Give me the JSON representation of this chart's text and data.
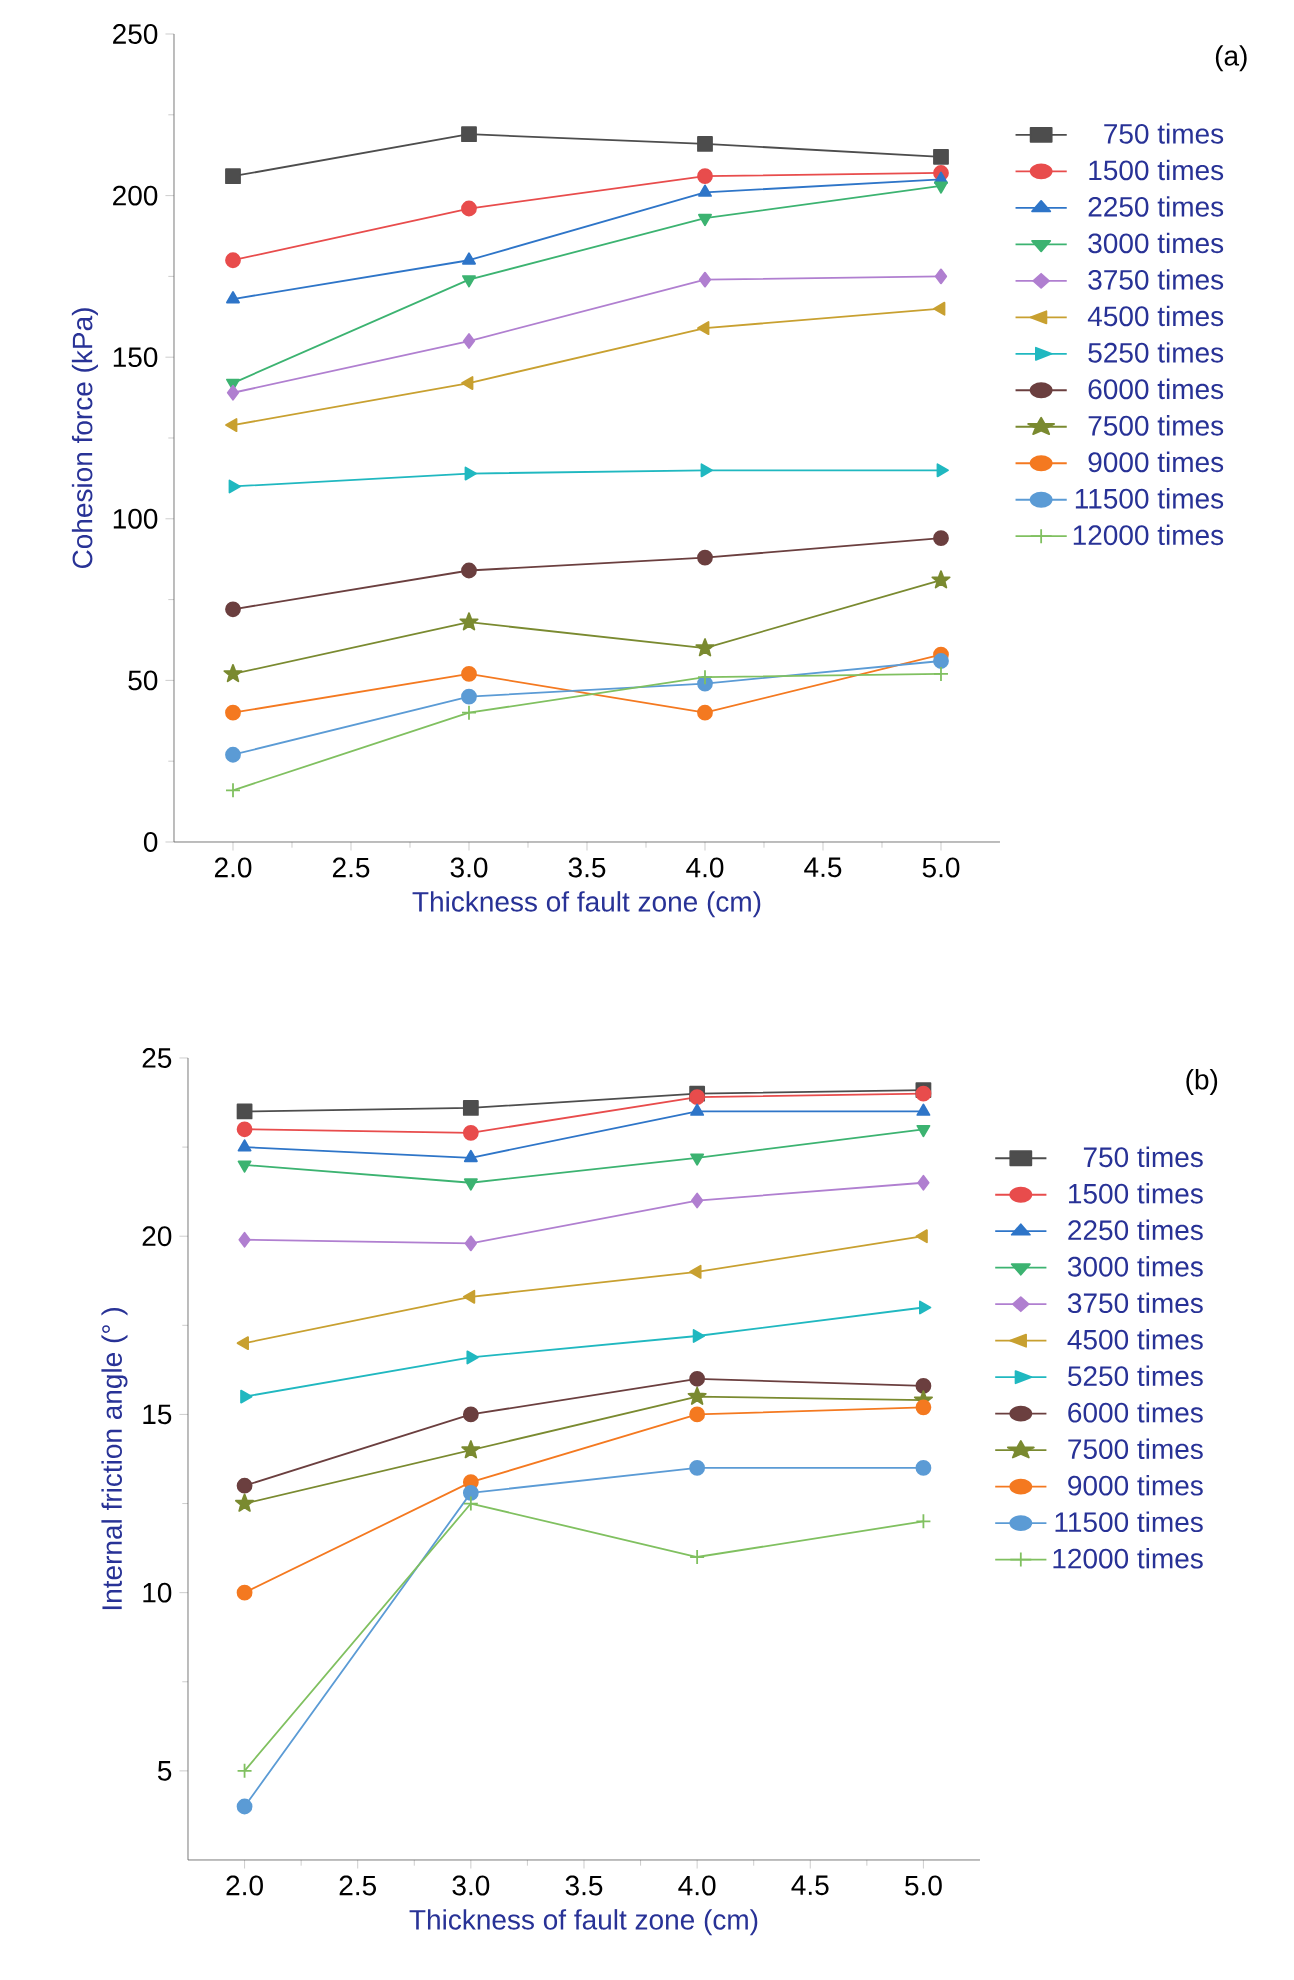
{
  "chart_data": [
    {
      "type": "line",
      "xlabel": "Thickness of fault zone (cm)",
      "ylabel": "Cohesion force (kPa)",
      "annotations": [
        "(a)"
      ],
      "x": [
        2,
        3,
        4,
        5
      ],
      "xlim": [
        1.75,
        5.25
      ],
      "ylim": [
        0,
        250
      ],
      "xticks": [
        {
          "value": 2,
          "label": "2.0"
        },
        {
          "value": 2.5,
          "label": "2.5"
        },
        {
          "value": 3,
          "label": "3.0"
        },
        {
          "value": 3.5,
          "label": "3.5"
        },
        {
          "value": 4,
          "label": "4.0"
        },
        {
          "value": 4.5,
          "label": "4.5"
        },
        {
          "value": 5,
          "label": "5.0"
        }
      ],
      "yticks": [
        0,
        50,
        100,
        150,
        200,
        250
      ],
      "legend": "right",
      "series": [
        {
          "name": "750 times",
          "color": "#4d4d4d",
          "marker": "square",
          "values": [
            206,
            219,
            216,
            212
          ]
        },
        {
          "name": "1500 times",
          "color": "#e84c4c",
          "marker": "circle",
          "values": [
            180,
            196,
            206,
            207
          ]
        },
        {
          "name": "2250 times",
          "color": "#2e75c8",
          "marker": "triangle",
          "values": [
            168,
            180,
            201,
            205
          ]
        },
        {
          "name": "3000 times",
          "color": "#3cb371",
          "marker": "triangle-down",
          "values": [
            142,
            174,
            193,
            203
          ]
        },
        {
          "name": "3750 times",
          "color": "#b07fd0",
          "marker": "diamond",
          "values": [
            139,
            155,
            174,
            175
          ]
        },
        {
          "name": "4500 times",
          "color": "#c8a030",
          "marker": "triangle-left",
          "values": [
            129,
            142,
            159,
            165
          ]
        },
        {
          "name": "5250 times",
          "color": "#20b8c0",
          "marker": "triangle-right",
          "values": [
            110,
            114,
            115,
            115
          ]
        },
        {
          "name": "6000 times",
          "color": "#6b3f3f",
          "marker": "circle",
          "values": [
            72,
            84,
            88,
            94
          ]
        },
        {
          "name": "7500 times",
          "color": "#7a8a30",
          "marker": "star",
          "values": [
            52,
            68,
            60,
            81
          ]
        },
        {
          "name": "9000 times",
          "color": "#f47920",
          "marker": "circle",
          "values": [
            40,
            52,
            40,
            58
          ]
        },
        {
          "name": "11500 times",
          "color": "#5b9bd5",
          "marker": "circle",
          "values": [
            27,
            45,
            49,
            56
          ]
        },
        {
          "name": "12000 times",
          "color": "#80c060",
          "marker": "cross",
          "values": [
            16,
            40,
            51,
            52
          ]
        }
      ]
    },
    {
      "type": "line",
      "xlabel": "Thickness of fault zone (cm)",
      "ylabel": "Internal friction angle (° )",
      "annotations": [
        "(b)"
      ],
      "x": [
        2,
        3,
        4,
        5
      ],
      "xlim": [
        1.75,
        5.25
      ],
      "ylim": [
        2.5,
        25
      ],
      "xticks": [
        {
          "value": 2,
          "label": "2.0"
        },
        {
          "value": 2.5,
          "label": "2.5"
        },
        {
          "value": 3,
          "label": "3.0"
        },
        {
          "value": 3.5,
          "label": "3.5"
        },
        {
          "value": 4,
          "label": "4.0"
        },
        {
          "value": 4.5,
          "label": "4.5"
        },
        {
          "value": 5,
          "label": "5.0"
        }
      ],
      "yticks": [
        5,
        10,
        15,
        20,
        25
      ],
      "legend": "right",
      "series": [
        {
          "name": "750 times",
          "color": "#4d4d4d",
          "marker": "square",
          "values": [
            23.5,
            23.6,
            24.0,
            24.1
          ]
        },
        {
          "name": "1500 times",
          "color": "#e84c4c",
          "marker": "circle",
          "values": [
            23.0,
            22.9,
            23.9,
            24.0
          ]
        },
        {
          "name": "2250 times",
          "color": "#2e75c8",
          "marker": "triangle",
          "values": [
            22.5,
            22.2,
            23.5,
            23.5
          ]
        },
        {
          "name": "3000 times",
          "color": "#3cb371",
          "marker": "triangle-down",
          "values": [
            22.0,
            21.5,
            22.2,
            23.0
          ]
        },
        {
          "name": "3750 times",
          "color": "#b07fd0",
          "marker": "diamond",
          "values": [
            19.9,
            19.8,
            21.0,
            21.5
          ]
        },
        {
          "name": "4500 times",
          "color": "#c8a030",
          "marker": "triangle-left",
          "values": [
            17.0,
            18.3,
            19.0,
            20.0
          ]
        },
        {
          "name": "5250 times",
          "color": "#20b8c0",
          "marker": "triangle-right",
          "values": [
            15.5,
            16.6,
            17.2,
            18.0
          ]
        },
        {
          "name": "6000 times",
          "color": "#6b3f3f",
          "marker": "circle",
          "values": [
            13.0,
            15.0,
            16.0,
            15.8
          ]
        },
        {
          "name": "7500 times",
          "color": "#7a8a30",
          "marker": "star",
          "values": [
            12.5,
            14.0,
            15.5,
            15.4
          ]
        },
        {
          "name": "9000 times",
          "color": "#f47920",
          "marker": "circle",
          "values": [
            10.0,
            13.1,
            15.0,
            15.2
          ]
        },
        {
          "name": "11500 times",
          "color": "#5b9bd5",
          "marker": "circle",
          "values": [
            4.0,
            12.8,
            13.5,
            13.5
          ]
        },
        {
          "name": "12000 times",
          "color": "#80c060",
          "marker": "cross",
          "values": [
            5.0,
            12.5,
            11.0,
            12.0
          ]
        }
      ]
    }
  ]
}
